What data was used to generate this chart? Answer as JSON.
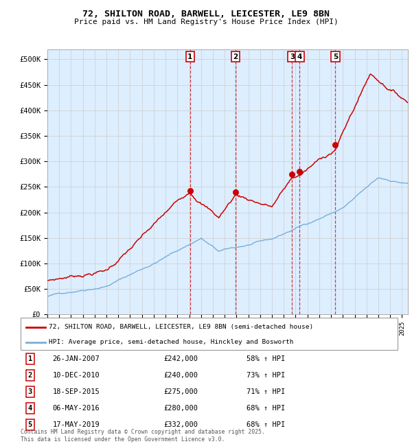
{
  "title": "72, SHILTON ROAD, BARWELL, LEICESTER, LE9 8BN",
  "subtitle": "Price paid vs. HM Land Registry's House Price Index (HPI)",
  "legend_line1": "72, SHILTON ROAD, BARWELL, LEICESTER, LE9 8BN (semi-detached house)",
  "legend_line2": "HPI: Average price, semi-detached house, Hinckley and Bosworth",
  "footer": "Contains HM Land Registry data © Crown copyright and database right 2025.\nThis data is licensed under the Open Government Licence v3.0.",
  "red_line_color": "#cc0000",
  "blue_line_color": "#7aaed6",
  "background_color": "#ddeeff",
  "plot_bg_color": "#ffffff",
  "grid_color": "#cccccc",
  "transactions": [
    {
      "num": 1,
      "date": "26-JAN-2007",
      "price": 242000,
      "hpi_pct": "58% ↑ HPI",
      "date_val": 2007.07
    },
    {
      "num": 2,
      "date": "10-DEC-2010",
      "price": 240000,
      "hpi_pct": "73% ↑ HPI",
      "date_val": 2010.93
    },
    {
      "num": 3,
      "date": "18-SEP-2015",
      "price": 275000,
      "hpi_pct": "71% ↑ HPI",
      "date_val": 2015.71
    },
    {
      "num": 4,
      "date": "06-MAY-2016",
      "price": 280000,
      "hpi_pct": "68% ↑ HPI",
      "date_val": 2016.34
    },
    {
      "num": 5,
      "date": "17-MAY-2019",
      "price": 332000,
      "hpi_pct": "68% ↑ HPI",
      "date_val": 2019.37
    }
  ],
  "ylim": [
    0,
    520000
  ],
  "xlim": [
    1995.0,
    2025.5
  ],
  "yticks": [
    0,
    50000,
    100000,
    150000,
    200000,
    250000,
    300000,
    350000,
    400000,
    450000,
    500000
  ],
  "ytick_labels": [
    "£0",
    "£50K",
    "£100K",
    "£150K",
    "£200K",
    "£250K",
    "£300K",
    "£350K",
    "£400K",
    "£450K",
    "£500K"
  ]
}
